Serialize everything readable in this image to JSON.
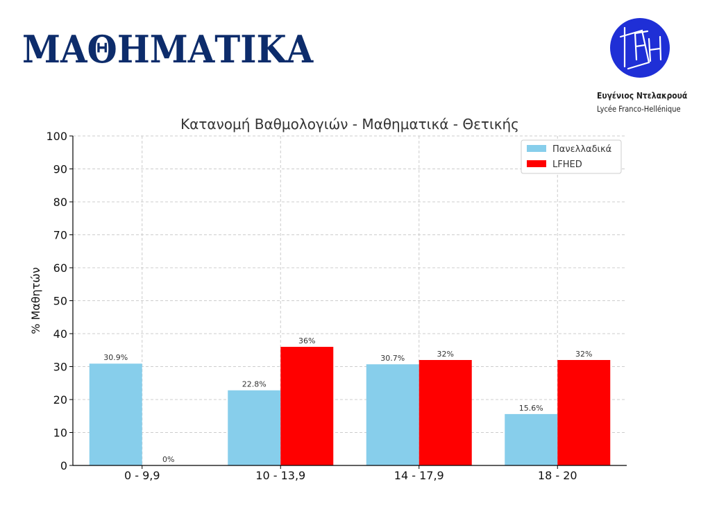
{
  "page": {
    "title": "ΜΑΘΗΜΑΤΙΚΑ"
  },
  "logo": {
    "monogram": "FH",
    "name": "Ευγένιος Ντελακρουά",
    "subtitle": "Lycée Franco-Hellénique",
    "color": "#1f2fd6"
  },
  "chart_data": {
    "type": "bar",
    "title": "Κατανομή Βαθμολογιών - Μαθηματικά - Θετικής",
    "xlabel": "",
    "ylabel": "% Μαθητών",
    "categories": [
      "0 - 9,9",
      "10 - 13,9",
      "14 - 17,9",
      "18 - 20"
    ],
    "series": [
      {
        "name": "Πανελλαδικά",
        "values": [
          30.9,
          22.8,
          30.7,
          15.6
        ],
        "labels": [
          "30.9%",
          "22.8%",
          "30.7%",
          "15.6%"
        ],
        "color": "#87ceeb"
      },
      {
        "name": "LFHED",
        "values": [
          0,
          36,
          32,
          32
        ],
        "labels": [
          "0%",
          "36%",
          "32%",
          "32%"
        ],
        "color": "#ff0000"
      }
    ],
    "ylim": [
      0,
      100
    ],
    "yticks": [
      0,
      10,
      20,
      30,
      40,
      50,
      60,
      70,
      80,
      90,
      100
    ],
    "grid": true,
    "legend_position": "top-right"
  }
}
